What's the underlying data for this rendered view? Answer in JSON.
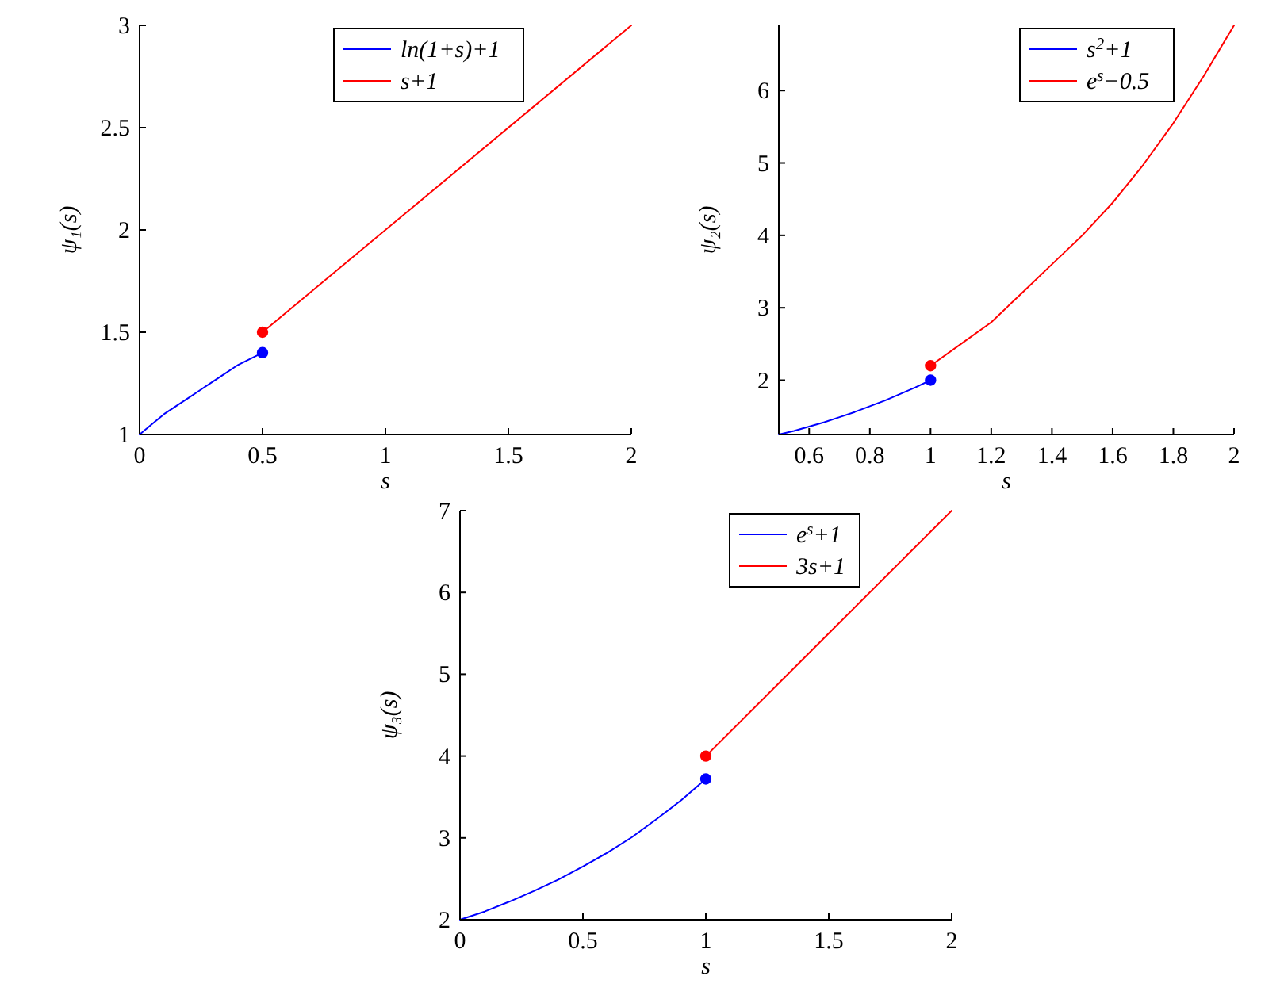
{
  "chart_data": [
    {
      "type": "line",
      "xlabel": "s",
      "ylabel": "ψ₁(s)",
      "xlim": [
        0,
        2
      ],
      "ylim": [
        1,
        3
      ],
      "xticks": [
        0,
        0.5,
        1,
        1.5,
        2
      ],
      "yticks": [
        1,
        1.5,
        2,
        2.5,
        3
      ],
      "legend": "top right",
      "marker": "none",
      "series": [
        {
          "name": "ln(1+s)+1",
          "color": "#0000ff",
          "x": [
            0,
            0.05,
            0.1,
            0.15,
            0.2,
            0.25,
            0.3,
            0.35,
            0.4,
            0.45,
            0.5
          ],
          "values": [
            1,
            1.05,
            1.1,
            1.14,
            1.18,
            1.22,
            1.26,
            1.3,
            1.34,
            1.37,
            1.4
          ]
        },
        {
          "name": "s+1",
          "color": "#ff0000",
          "x": [
            0.5,
            2
          ],
          "values": [
            1.5,
            3
          ]
        },
        {
          "type": "scatter",
          "marker": "circle",
          "color": "#0000ff",
          "x": [
            0.5
          ],
          "values": [
            1.4
          ]
        },
        {
          "type": "scatter",
          "marker": "circle",
          "color": "#ff0000",
          "x": [
            0.5
          ],
          "values": [
            1.5
          ]
        }
      ]
    },
    {
      "type": "line",
      "xlabel": "s",
      "ylabel": "ψ₂(s)",
      "xlim": [
        0.5,
        2
      ],
      "ylim": [
        1.25,
        6.9
      ],
      "xticks": [
        0.6,
        0.8,
        1,
        1.2,
        1.4,
        1.6,
        1.8,
        2
      ],
      "yticks": [
        2,
        3,
        4,
        5,
        6
      ],
      "legend": "top right",
      "marker": "none",
      "series": [
        {
          "name": "s$^{2}$+1",
          "color": "#0000ff",
          "x": [
            0.5,
            0.55,
            0.6,
            0.65,
            0.7,
            0.75,
            0.8,
            0.85,
            0.9,
            0.95,
            1
          ],
          "values": [
            1.25,
            1.3,
            1.36,
            1.42,
            1.49,
            1.56,
            1.64,
            1.72,
            1.81,
            1.9,
            2
          ]
        },
        {
          "name": "e$^{s}$−0.5",
          "color": "#ff0000",
          "x": [
            1,
            1.1,
            1.2,
            1.3,
            1.4,
            1.5,
            1.6,
            1.7,
            1.8,
            1.9,
            2
          ],
          "values": [
            2.2,
            2.5,
            2.8,
            3.2,
            3.6,
            4,
            4.45,
            4.97,
            5.55,
            6.2,
            6.9
          ]
        },
        {
          "type": "scatter",
          "marker": "circle",
          "color": "#0000ff",
          "x": [
            1
          ],
          "values": [
            2
          ]
        },
        {
          "type": "scatter",
          "marker": "circle",
          "color": "#ff0000",
          "x": [
            1
          ],
          "values": [
            2.2
          ]
        }
      ]
    },
    {
      "type": "line",
      "xlabel": "s",
      "ylabel": "ψ₃(s)",
      "xlim": [
        0,
        2
      ],
      "ylim": [
        2,
        7
      ],
      "xticks": [
        0,
        0.5,
        1,
        1.5,
        2
      ],
      "yticks": [
        2,
        3,
        4,
        5,
        6,
        7
      ],
      "legend": "top right",
      "marker": "none",
      "series": [
        {
          "name": "e$^{s}$+1",
          "color": "#0000ff",
          "x": [
            0,
            0.1,
            0.2,
            0.3,
            0.4,
            0.5,
            0.6,
            0.7,
            0.8,
            0.9,
            1
          ],
          "values": [
            2,
            2.1,
            2.22,
            2.35,
            2.49,
            2.65,
            2.82,
            3.01,
            3.23,
            3.46,
            3.72
          ]
        },
        {
          "name": "3s+1",
          "color": "#ff0000",
          "x": [
            1,
            2
          ],
          "values": [
            4,
            7
          ]
        },
        {
          "type": "scatter",
          "marker": "circle",
          "color": "#0000ff",
          "x": [
            1
          ],
          "values": [
            3.72
          ]
        },
        {
          "type": "scatter",
          "marker": "circle",
          "color": "#ff0000",
          "x": [
            1
          ],
          "values": [
            4
          ]
        }
      ]
    }
  ]
}
